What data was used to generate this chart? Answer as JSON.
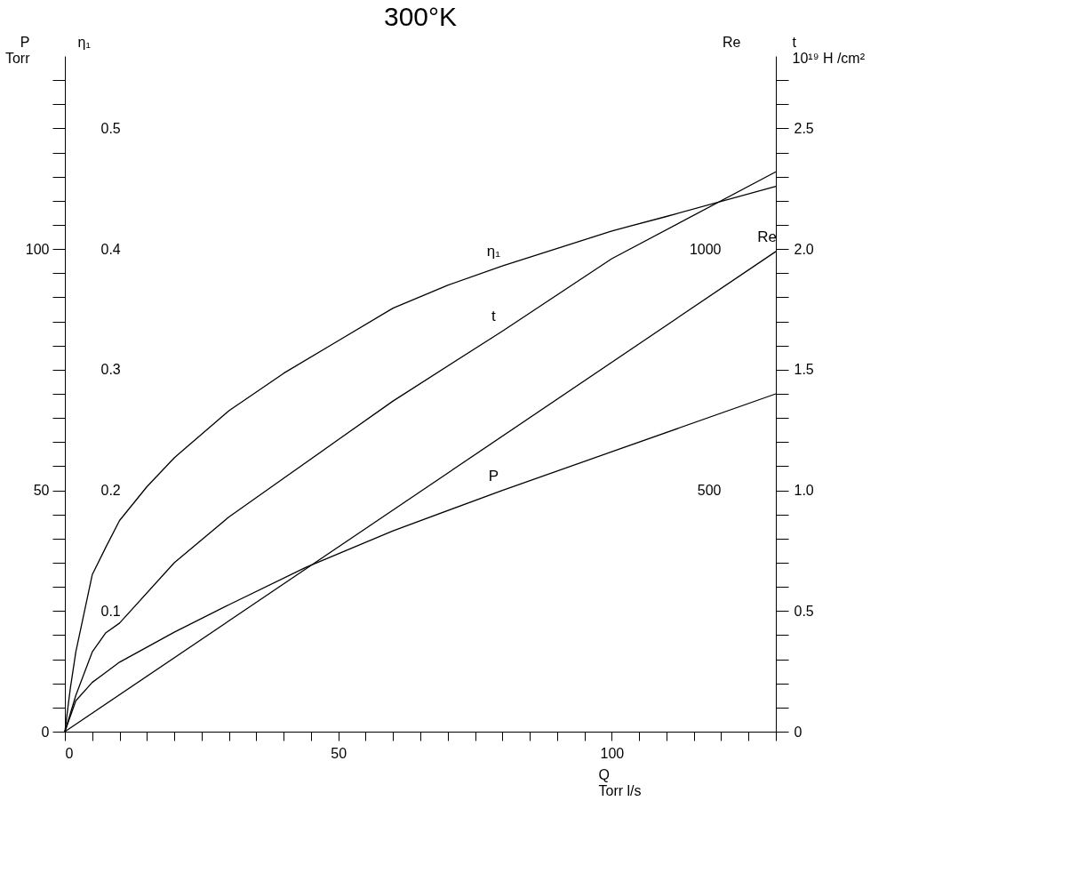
{
  "chart_data": [
    {
      "type": "line",
      "title": "300°K",
      "xlabel": "Q\nTorr l/s",
      "ylabel": "P\nTorr",
      "y2label": "η₁",
      "xlim": [
        0,
        130
      ],
      "xticks": [
        0,
        {
          "value": 5,
          "label": null
        },
        {
          "value": 10,
          "label": null
        },
        {
          "value": 15,
          "label": null
        },
        {
          "value": 20,
          "label": null
        },
        {
          "value": 25,
          "label": null
        },
        {
          "value": 30,
          "label": null
        },
        {
          "value": 35,
          "label": null
        },
        {
          "value": 40,
          "label": null
        },
        {
          "value": 45,
          "label": null
        },
        50,
        {
          "value": 55,
          "label": null
        },
        {
          "value": 60,
          "label": null
        },
        {
          "value": 65,
          "label": null
        },
        {
          "value": 70,
          "label": null
        },
        {
          "value": 75,
          "label": null
        },
        {
          "value": 80,
          "label": null
        },
        {
          "value": 85,
          "label": null
        },
        {
          "value": 90,
          "label": null
        },
        {
          "value": 95,
          "label": null
        },
        100,
        {
          "value": 105,
          "label": null
        },
        {
          "value": 110,
          "label": null
        },
        {
          "value": 115,
          "label": null
        },
        {
          "value": 120,
          "label": null
        },
        {
          "value": 125,
          "label": null
        },
        {
          "value": 130,
          "label": null
        }
      ],
      "ylim": [
        0,
        140
      ],
      "yticks": [
        0,
        {
          "value": 5,
          "label": null
        },
        {
          "value": 10,
          "label": null
        },
        {
          "value": 15,
          "label": null
        },
        {
          "value": 20,
          "label": null
        },
        {
          "value": 25,
          "label": null
        },
        {
          "value": 30,
          "label": null
        },
        {
          "value": 35,
          "label": null
        },
        {
          "value": 40,
          "label": null
        },
        {
          "value": 45,
          "label": null
        },
        50,
        {
          "value": 55,
          "label": null
        },
        {
          "value": 60,
          "label": null
        },
        {
          "value": 65,
          "label": null
        },
        {
          "value": 70,
          "label": null
        },
        {
          "value": 75,
          "label": null
        },
        {
          "value": 80,
          "label": null
        },
        {
          "value": 85,
          "label": null
        },
        {
          "value": 90,
          "label": null
        },
        {
          "value": 95,
          "label": null
        },
        100,
        {
          "value": 105,
          "label": null
        },
        {
          "value": 110,
          "label": null
        },
        {
          "value": 115,
          "label": null
        },
        {
          "value": 120,
          "label": null
        },
        {
          "value": 125,
          "label": null
        },
        {
          "value": 130,
          "label": null
        },
        {
          "value": 135,
          "label": null
        }
      ],
      "y2lim": [
        0,
        0.56
      ],
      "y2ticks": [
        0.1,
        0.2,
        0.3,
        0.4,
        0.5
      ],
      "grid": false,
      "series": [
        {
          "name": "η₁",
          "axis": "y2",
          "color": "#000000",
          "x": [
            0,
            1,
            2,
            5,
            7.5,
            10,
            15,
            20,
            30,
            40,
            50,
            60,
            70,
            80,
            100,
            110,
            130
          ],
          "values": [
            0,
            0.036,
            0.066,
            0.13,
            0.153,
            0.175,
            0.203,
            0.227,
            0.266,
            0.297,
            0.324,
            0.351,
            0.37,
            0.386,
            0.415,
            0.427,
            0.452
          ]
        },
        {
          "name": "P",
          "color": "#000000",
          "x": [
            0,
            2,
            5,
            7.5,
            10,
            20,
            30,
            44,
            60,
            80,
            100,
            130
          ],
          "values": [
            0,
            6.4,
            10.2,
            12.3,
            14.4,
            20.6,
            26.3,
            34,
            41.6,
            50,
            58,
            70
          ]
        }
      ]
    },
    {
      "type": "line",
      "ylabel": "Re",
      "y2label": "t\n10¹⁹ H /cm²",
      "xlim": [
        0,
        130
      ],
      "ylim": [
        0,
        1400
      ],
      "yticks": [
        500,
        1000
      ],
      "y2lim": [
        0,
        2.8
      ],
      "y2ticks": [
        0,
        {
          "value": 0.1,
          "label": null
        },
        {
          "value": 0.2,
          "label": null
        },
        {
          "value": 0.3,
          "label": null
        },
        {
          "value": 0.4,
          "label": null
        },
        0.5,
        {
          "value": 0.6,
          "label": null
        },
        {
          "value": 0.7,
          "label": null
        },
        {
          "value": 0.8,
          "label": null
        },
        {
          "value": 0.9,
          "label": null
        },
        {
          "value": 1.0,
          "label": "1.0"
        },
        {
          "value": 1.1,
          "label": null
        },
        {
          "value": 1.2,
          "label": null
        },
        {
          "value": 1.3,
          "label": null
        },
        {
          "value": 1.4,
          "label": null
        },
        1.5,
        {
          "value": 1.6,
          "label": null
        },
        {
          "value": 1.7,
          "label": null
        },
        {
          "value": 1.8,
          "label": null
        },
        {
          "value": 1.9,
          "label": null
        },
        {
          "value": 2.0,
          "label": "2.0"
        },
        {
          "value": 2.1,
          "label": null
        },
        {
          "value": 2.2,
          "label": null
        },
        {
          "value": 2.3,
          "label": null
        },
        {
          "value": 2.4,
          "label": null
        },
        2.5,
        {
          "value": 2.6,
          "label": null
        },
        {
          "value": 2.7,
          "label": null
        }
      ],
      "grid": false,
      "series": [
        {
          "name": "t",
          "axis": "y2",
          "color": "#000000",
          "x": [
            0,
            2,
            5,
            7.5,
            10,
            20,
            30,
            40,
            50,
            60,
            80,
            100,
            130
          ],
          "values": [
            0,
            0.15,
            0.33,
            0.41,
            0.45,
            0.7,
            0.89,
            1.05,
            1.21,
            1.37,
            1.66,
            1.96,
            2.32
          ]
        },
        {
          "name": "Re",
          "color": "#000000",
          "x": [
            0,
            130
          ],
          "values": [
            0,
            995
          ]
        }
      ]
    }
  ]
}
